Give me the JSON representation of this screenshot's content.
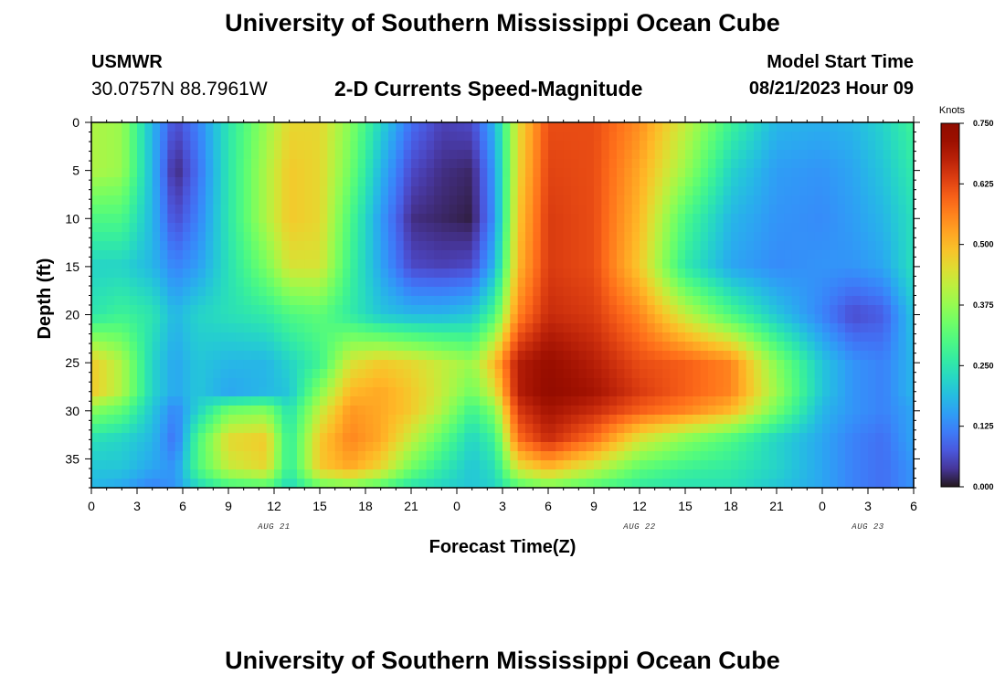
{
  "header": {
    "title": "University of Southern Mississippi Ocean Cube",
    "station_id": "USMWR",
    "station_coords": "30.0757N  88.7961W",
    "subtitle": "2-D Currents Speed-Magnitude",
    "model_start_label": "Model Start Time",
    "model_start_value": "08/21/2023 Hour 09"
  },
  "footer": {
    "title": "University of Southern Mississippi Ocean Cube"
  },
  "chart_data": {
    "type": "heatmap",
    "xlabel": "Forecast Time(Z)",
    "ylabel": "Depth (ft)",
    "x_tick_labels": [
      "0",
      "3",
      "6",
      "9",
      "12",
      "15",
      "18",
      "21",
      "0",
      "3",
      "6",
      "9",
      "12",
      "15",
      "18",
      "21",
      "0",
      "3",
      "6"
    ],
    "x_date_labels": [
      {
        "label": "AUG 21",
        "at_tick": 4
      },
      {
        "label": "AUG 22",
        "at_tick": 12
      },
      {
        "label": "AUG 23",
        "at_tick": 17
      }
    ],
    "x_range_hours": [
      0,
      54
    ],
    "y_ticks": [
      0,
      5,
      10,
      15,
      20,
      25,
      30,
      35
    ],
    "y_range": [
      0,
      38
    ],
    "y_inverted": true,
    "colorbar": {
      "unit": "Knots",
      "range": [
        0.0,
        0.75
      ],
      "tick_labels": [
        "0.750",
        "0.625",
        "0.500",
        "0.375",
        "0.250",
        "0.125",
        "0.000"
      ],
      "colormap": "turbo"
    },
    "grid": {
      "depths_ft": [
        0,
        5,
        10,
        15,
        20,
        25,
        28,
        30,
        33,
        36,
        38
      ],
      "times_h": [
        0,
        2,
        4,
        5.5,
        7,
        9,
        11.5,
        13,
        15,
        17,
        19,
        21,
        23,
        25,
        26.5,
        28,
        30,
        33,
        36,
        39,
        42,
        45,
        48,
        50,
        52,
        54
      ],
      "values_knots": [
        [
          0.4,
          0.38,
          0.18,
          0.06,
          0.12,
          0.25,
          0.38,
          0.46,
          0.46,
          0.36,
          0.22,
          0.1,
          0.05,
          0.06,
          0.18,
          0.45,
          0.62,
          0.62,
          0.55,
          0.42,
          0.28,
          0.18,
          0.17,
          0.18,
          0.22,
          0.28
        ],
        [
          0.4,
          0.38,
          0.18,
          0.02,
          0.1,
          0.25,
          0.4,
          0.48,
          0.46,
          0.34,
          0.18,
          0.06,
          0.03,
          0.02,
          0.15,
          0.46,
          0.63,
          0.62,
          0.52,
          0.38,
          0.22,
          0.15,
          0.14,
          0.16,
          0.2,
          0.26
        ],
        [
          0.3,
          0.3,
          0.18,
          0.06,
          0.12,
          0.25,
          0.4,
          0.48,
          0.46,
          0.3,
          0.15,
          0.03,
          0.02,
          0.01,
          0.14,
          0.48,
          0.64,
          0.62,
          0.5,
          0.3,
          0.18,
          0.14,
          0.13,
          0.15,
          0.18,
          0.24
        ],
        [
          0.22,
          0.22,
          0.18,
          0.12,
          0.15,
          0.24,
          0.35,
          0.44,
          0.44,
          0.28,
          0.16,
          0.06,
          0.05,
          0.06,
          0.18,
          0.5,
          0.64,
          0.62,
          0.48,
          0.26,
          0.16,
          0.13,
          0.14,
          0.14,
          0.16,
          0.24
        ],
        [
          0.25,
          0.28,
          0.25,
          0.18,
          0.22,
          0.24,
          0.26,
          0.3,
          0.32,
          0.26,
          0.2,
          0.18,
          0.18,
          0.2,
          0.3,
          0.56,
          0.66,
          0.64,
          0.56,
          0.42,
          0.3,
          0.2,
          0.12,
          0.06,
          0.08,
          0.2
        ],
        [
          0.48,
          0.4,
          0.22,
          0.16,
          0.2,
          0.18,
          0.18,
          0.22,
          0.28,
          0.44,
          0.48,
          0.46,
          0.42,
          0.38,
          0.5,
          0.68,
          0.72,
          0.68,
          0.62,
          0.6,
          0.56,
          0.36,
          0.2,
          0.14,
          0.12,
          0.18
        ],
        [
          0.48,
          0.4,
          0.22,
          0.16,
          0.2,
          0.16,
          0.18,
          0.2,
          0.36,
          0.5,
          0.52,
          0.48,
          0.42,
          0.34,
          0.44,
          0.68,
          0.73,
          0.7,
          0.64,
          0.6,
          0.56,
          0.38,
          0.2,
          0.14,
          0.12,
          0.18
        ],
        [
          0.36,
          0.32,
          0.2,
          0.12,
          0.22,
          0.34,
          0.36,
          0.24,
          0.42,
          0.54,
          0.52,
          0.48,
          0.4,
          0.28,
          0.36,
          0.64,
          0.7,
          0.66,
          0.6,
          0.56,
          0.5,
          0.34,
          0.18,
          0.14,
          0.12,
          0.16
        ],
        [
          0.24,
          0.22,
          0.18,
          0.1,
          0.3,
          0.46,
          0.48,
          0.26,
          0.48,
          0.56,
          0.52,
          0.42,
          0.32,
          0.22,
          0.28,
          0.58,
          0.66,
          0.58,
          0.44,
          0.36,
          0.3,
          0.22,
          0.16,
          0.12,
          0.1,
          0.16
        ],
        [
          0.2,
          0.2,
          0.16,
          0.14,
          0.3,
          0.42,
          0.46,
          0.26,
          0.48,
          0.52,
          0.46,
          0.34,
          0.26,
          0.2,
          0.24,
          0.44,
          0.5,
          0.42,
          0.32,
          0.28,
          0.26,
          0.22,
          0.16,
          0.12,
          0.1,
          0.14
        ],
        [
          0.18,
          0.16,
          0.12,
          0.14,
          0.22,
          0.28,
          0.3,
          0.22,
          0.32,
          0.34,
          0.3,
          0.24,
          0.22,
          0.2,
          0.22,
          0.3,
          0.34,
          0.3,
          0.26,
          0.24,
          0.24,
          0.2,
          0.16,
          0.12,
          0.1,
          0.14
        ]
      ]
    }
  }
}
